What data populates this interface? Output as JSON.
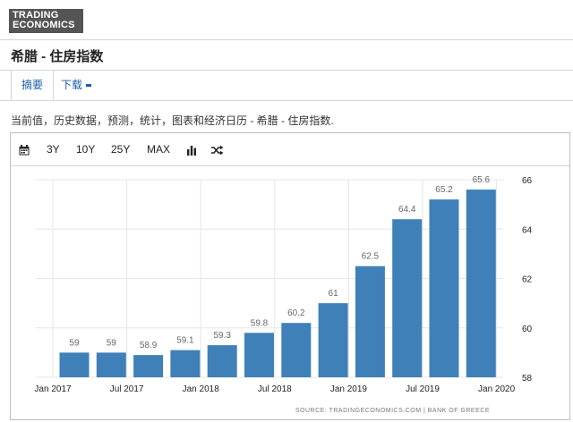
{
  "logo": {
    "line1": "TRADING",
    "line2": "ECONOMICS"
  },
  "page": {
    "title": "希腊 - 住房指数",
    "description": "当前值，历史数据，预测，统计，图表和经济日历 - 希腊 - 住房指数."
  },
  "tabs": [
    {
      "label": "摘要"
    },
    {
      "label": "下载"
    }
  ],
  "toolbar": {
    "items": [
      "3Y",
      "10Y",
      "25Y",
      "MAX"
    ],
    "icons": [
      "calendar-icon",
      "bar-chart-icon",
      "shuffle-icon"
    ]
  },
  "colors": {
    "bar": "#3f80b8",
    "link": "#1a5fa8"
  },
  "source": "SOURCE: TRADINGECONOMICS.COM  |  BANK OF GREECE",
  "chart_data": {
    "type": "bar",
    "title": "",
    "xlabel": "",
    "ylabel": "",
    "categories": [
      "Jan 2017",
      "Apr 2017",
      "Jul 2017",
      "Oct 2017",
      "Jan 2018",
      "Apr 2018",
      "Jul 2018",
      "Oct 2018",
      "Jan 2019",
      "Apr 2019",
      "Jul 2019",
      "Oct 2019"
    ],
    "values": [
      59,
      59,
      58.9,
      59.1,
      59.3,
      59.8,
      60.2,
      61,
      62.5,
      64.4,
      65.2,
      65.6
    ],
    "value_labels": [
      "59",
      "59",
      "58.9",
      "59.1",
      "59.3",
      "59.8",
      "60.2",
      "61",
      "62.5",
      "64.4",
      "65.2",
      "65.6"
    ],
    "x_tick_labels": [
      "Jan 2017",
      "Jul 2017",
      "Jan 2018",
      "Jul 2018",
      "Jan 2019",
      "Jul 2019",
      "Jan 2020"
    ],
    "y_ticks": [
      58,
      60,
      62,
      64,
      66
    ],
    "ylim": [
      58,
      66
    ],
    "y_axis_position": "right",
    "grid": true
  }
}
